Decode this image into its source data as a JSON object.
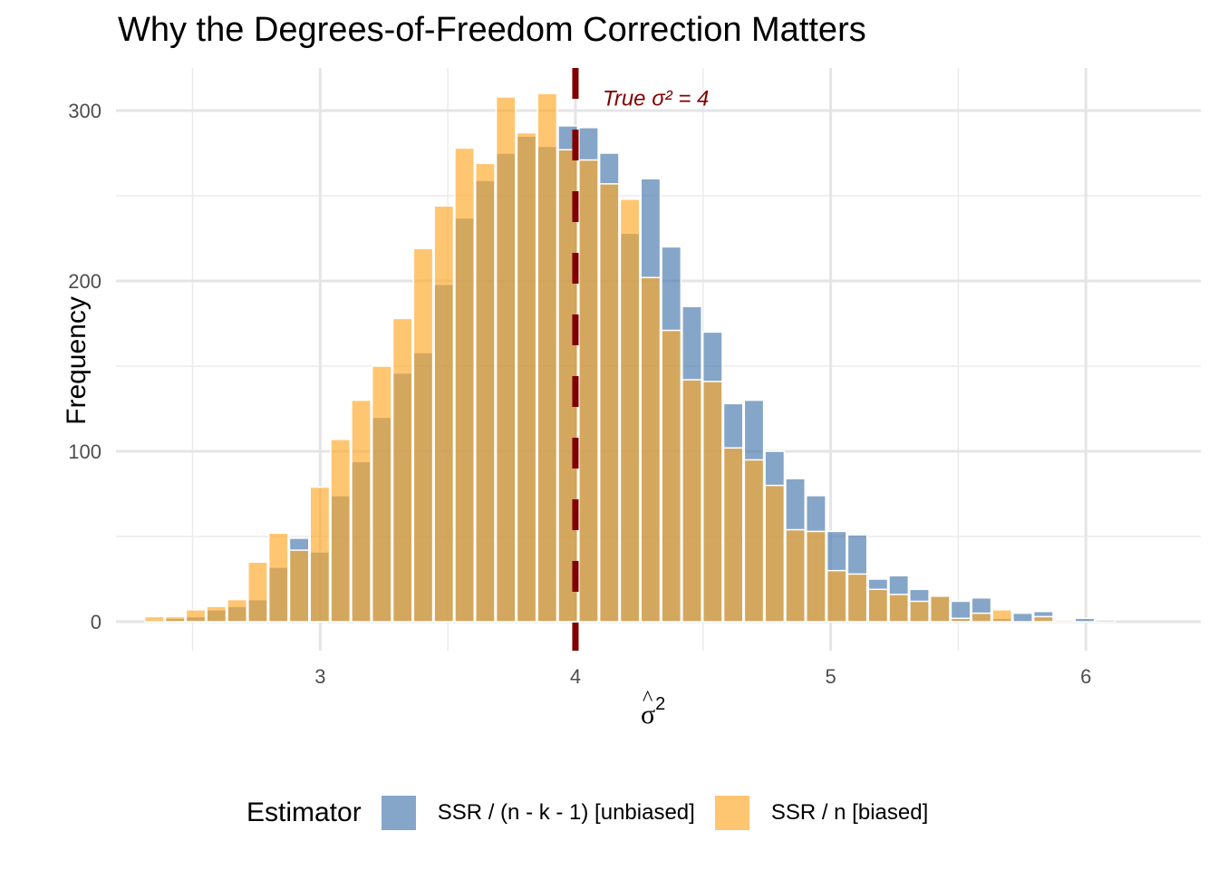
{
  "chart_data": {
    "type": "bar",
    "subtype": "overlapping-histogram",
    "title": "Why the Degrees-of-Freedom Correction Matters",
    "xlabel": "σ̂²",
    "ylabel": "Frequency",
    "xlim": [
      2.2,
      6.45
    ],
    "ylim": [
      -17,
      325
    ],
    "x_ticks": [
      3,
      4,
      5,
      6
    ],
    "x_minor_gridlines": [
      2.5,
      3.5,
      4.5,
      5.5
    ],
    "y_ticks": [
      0,
      100,
      200,
      300
    ],
    "y_minor_gridlines": [
      50,
      150,
      250
    ],
    "grid": true,
    "bin_start": 2.31,
    "bin_width": 0.081,
    "series": [
      {
        "name": "SSR / (n - k - 1)  [unbiased]",
        "color": "#4477AA",
        "alpha": 0.65,
        "values": [
          1,
          2,
          3,
          7,
          9,
          13,
          32,
          49,
          41,
          74,
          94,
          120,
          146,
          158,
          198,
          237,
          259,
          275,
          285,
          279,
          291,
          290,
          275,
          228,
          260,
          220,
          185,
          170,
          128,
          130,
          100,
          84,
          74,
          53,
          51,
          25,
          27,
          19,
          15,
          12,
          14,
          2,
          5,
          6,
          0,
          2,
          1
        ]
      },
      {
        "name": "SSR / n  [biased]",
        "color": "#FFA726",
        "alpha": 0.65,
        "values": [
          3,
          3,
          7,
          9,
          13,
          35,
          52,
          42,
          79,
          107,
          130,
          150,
          178,
          219,
          244,
          278,
          269,
          308,
          287,
          310,
          277,
          271,
          257,
          248,
          202,
          171,
          142,
          141,
          102,
          95,
          80,
          54,
          53,
          30,
          28,
          19,
          16,
          12,
          15,
          2,
          5,
          7,
          0,
          3,
          1,
          0,
          0
        ]
      }
    ],
    "reference_line": {
      "x": 4,
      "style": "dashed",
      "color": "#800000",
      "label": "True σ² = 4"
    },
    "legend": {
      "title": "Estimator",
      "placement": "bottom"
    }
  }
}
